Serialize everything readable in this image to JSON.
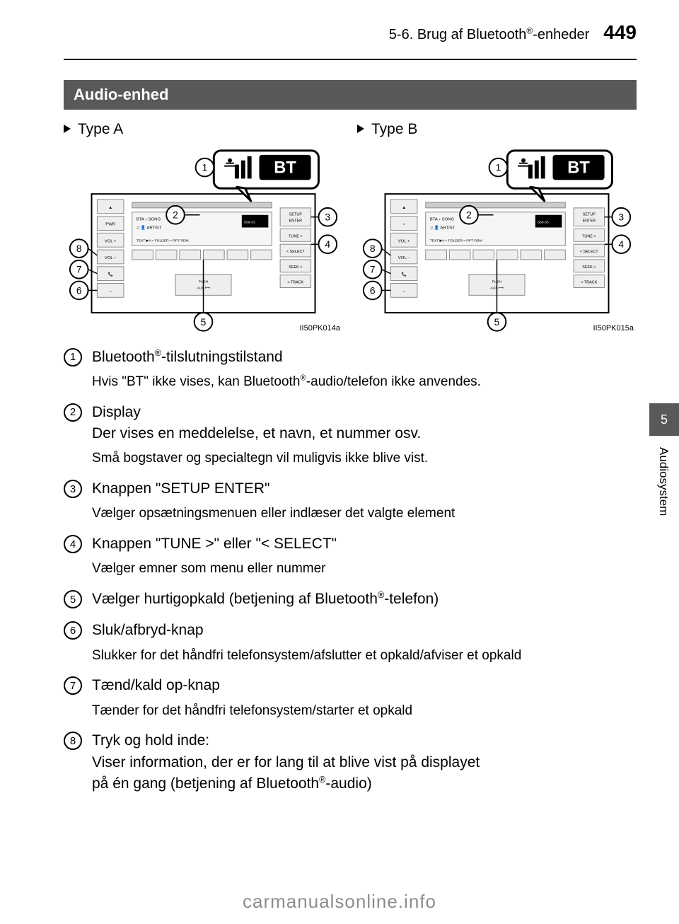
{
  "header": {
    "section": "5-6. Brug af Bluetooth®-enheder",
    "page": "449"
  },
  "section_title": "Audio-enhed",
  "types": {
    "a": {
      "label": "Type A",
      "fig_code": "II50PK014a"
    },
    "b": {
      "label": "Type B",
      "fig_code": "II50PK015a"
    }
  },
  "radio": {
    "left_buttons_a": [
      "▲",
      "PWR",
      "VOL +",
      "VOL −",
      "📞",
      "⌢"
    ],
    "left_buttons_b": [
      "▲",
      "○",
      "VOL +",
      "VOL −",
      "📞",
      "⌢"
    ],
    "right_buttons": [
      "SETUP\nENTER",
      "TUNE >",
      "< SELECT",
      "SEEK >",
      "< TRACK"
    ],
    "display_lines": [
      "BTA ♪ SONG",
      "♫  👤 ARTIST",
      "TEXT  ▶II  < FOLDER >  RPT  RDM"
    ],
    "aux_label": "PUSH\nAUX  ↔",
    "callout_bt": "𝌆 BT",
    "callouts": [
      "1",
      "2",
      "3",
      "4",
      "5",
      "6",
      "7",
      "8"
    ]
  },
  "items": [
    {
      "num": "1",
      "title_pre": "Bluetooth",
      "title_post": "-tilslutningstilstand",
      "sub_pre": "Hvis \"BT\" ikke vises, kan Bluetooth",
      "sub_post": "-audio/telefon ikke anvendes."
    },
    {
      "num": "2",
      "title": "Display",
      "line2": "Der vises en meddelelse, et navn, et nummer osv.",
      "sub": "Små bogstaver og specialtegn vil muligvis ikke blive vist."
    },
    {
      "num": "3",
      "title": "Knappen \"SETUP ENTER\"",
      "sub": "Vælger opsætningsmenuen eller indlæser det valgte element"
    },
    {
      "num": "4",
      "title": "Knappen \"TUNE >\" eller \"< SELECT\"",
      "sub": "Vælger emner som menu eller nummer"
    },
    {
      "num": "5",
      "title_pre": "Vælger hurtigopkald (betjening af Bluetooth",
      "title_post": "-telefon)"
    },
    {
      "num": "6",
      "title": "Sluk/afbryd-knap",
      "sub": "Slukker for det håndfri telefonsystem/afslutter et opkald/afviser et opkald"
    },
    {
      "num": "7",
      "title": "Tænd/kald op-knap",
      "sub": "Tænder for det håndfri telefonsystem/starter et opkald"
    },
    {
      "num": "8",
      "title": "Tryk og hold inde:",
      "line2": "Viser information, der er for lang til at blive vist på displayet",
      "line3_pre": "på én gang (betjening af Bluetooth",
      "line3_post": "-audio)"
    }
  ],
  "side_tab": {
    "num": "5",
    "label": "Audiosystem"
  },
  "watermark": "carmanualsonline.info"
}
